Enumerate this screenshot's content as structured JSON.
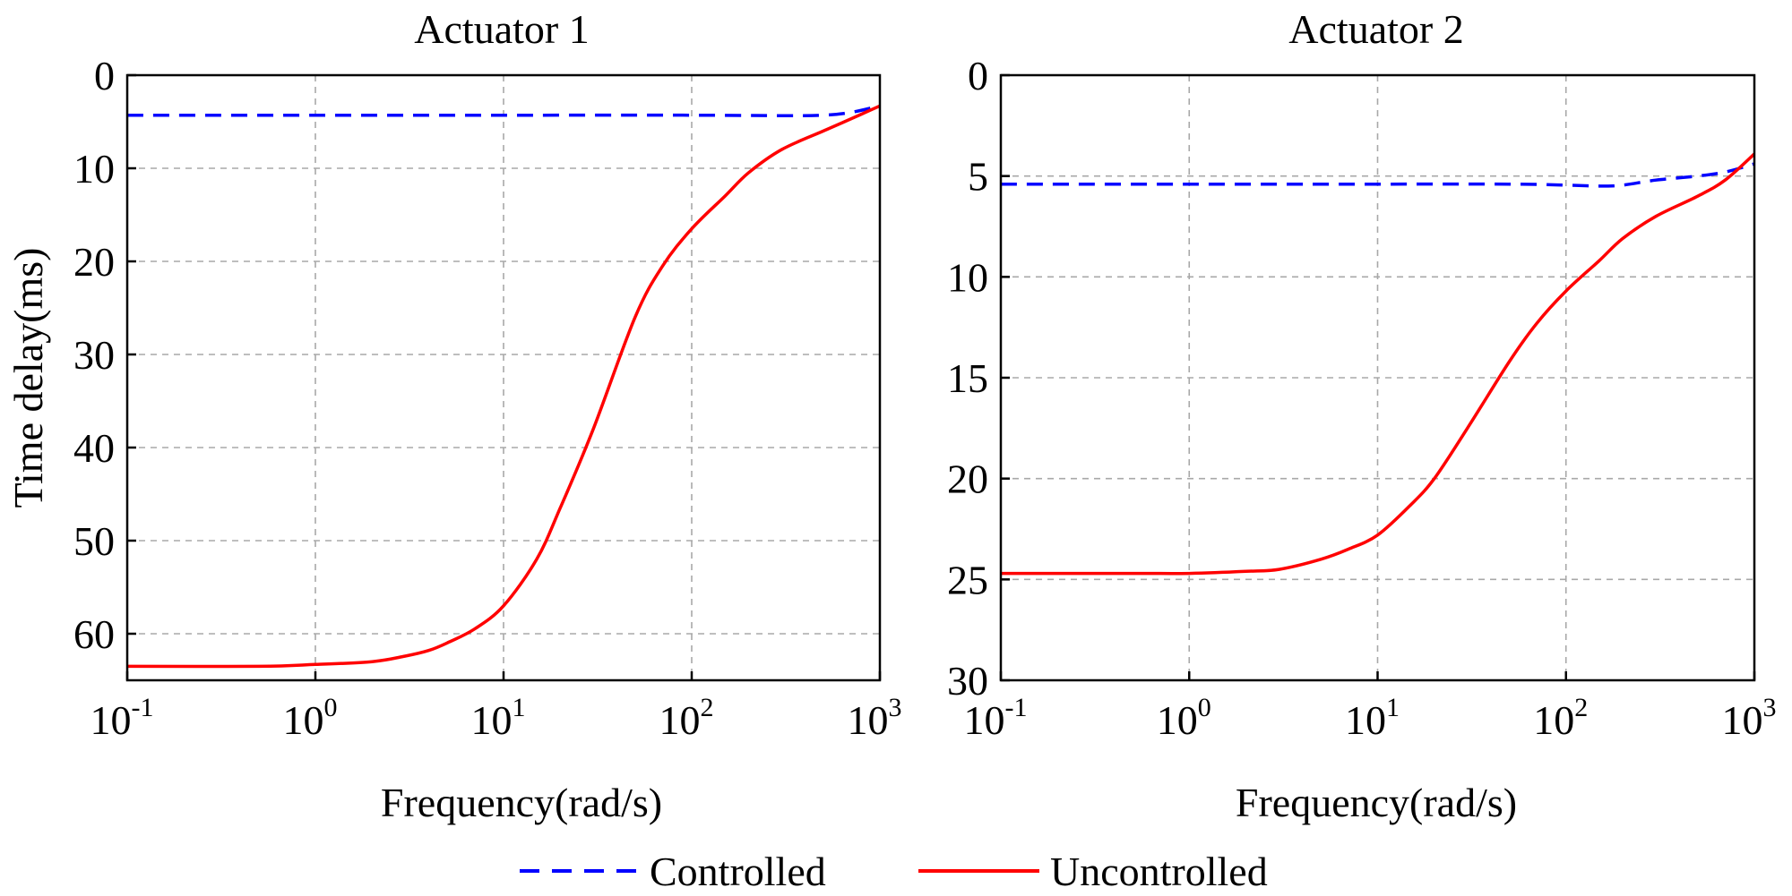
{
  "legend": [
    {
      "label": "Controlled",
      "color": "#0000ff",
      "style": "dashed"
    },
    {
      "label": "Uncontrolled",
      "color": "#ff0000",
      "style": "solid"
    }
  ],
  "chart_data": [
    {
      "type": "line",
      "title": "Actuator 1",
      "xlabel": "Frequency(rad/s)",
      "ylabel": "Time delay(ms)",
      "xscale": "log",
      "xlim": [
        0.1,
        1000
      ],
      "ylim": [
        0,
        65
      ],
      "y_inverted": true,
      "grid": true,
      "x_ticks": [
        {
          "base": "10",
          "exp": "-1",
          "value": 0.1
        },
        {
          "base": "10",
          "exp": "0",
          "value": 1
        },
        {
          "base": "10",
          "exp": "1",
          "value": 10
        },
        {
          "base": "10",
          "exp": "2",
          "value": 100
        },
        {
          "base": "10",
          "exp": "3",
          "value": 1000
        }
      ],
      "y_ticks": [
        "0",
        "10",
        "20",
        "30",
        "40",
        "50",
        "60"
      ],
      "series": [
        {
          "name": "Controlled",
          "color": "#0000ff",
          "style": "dashed",
          "x": [
            0.1,
            1,
            10,
            100,
            300,
            500,
            700,
            1000
          ],
          "y": [
            4.3,
            4.3,
            4.3,
            4.3,
            4.35,
            4.3,
            4.0,
            3.3
          ]
        },
        {
          "name": "Uncontrolled",
          "color": "#ff0000",
          "style": "solid",
          "x": [
            0.1,
            0.5,
            1,
            2,
            3,
            4,
            5,
            7,
            10,
            15,
            20,
            30,
            50,
            70,
            100,
            150,
            200,
            300,
            500,
            700,
            1000
          ],
          "y": [
            63.5,
            63.5,
            63.3,
            63.0,
            62.4,
            61.8,
            61.0,
            59.5,
            57.0,
            52.0,
            46.5,
            38.0,
            26.0,
            20.5,
            16.5,
            13.0,
            10.5,
            8.0,
            6.0,
            4.7,
            3.3
          ]
        }
      ]
    },
    {
      "type": "line",
      "title": "Actuator 2",
      "xlabel": "Frequency(rad/s)",
      "ylabel": "",
      "xscale": "log",
      "xlim": [
        0.1,
        1000
      ],
      "ylim": [
        0,
        30
      ],
      "y_inverted": true,
      "grid": true,
      "x_ticks": [
        {
          "base": "10",
          "exp": "-1",
          "value": 0.1
        },
        {
          "base": "10",
          "exp": "0",
          "value": 1
        },
        {
          "base": "10",
          "exp": "1",
          "value": 10
        },
        {
          "base": "10",
          "exp": "2",
          "value": 100
        },
        {
          "base": "10",
          "exp": "3",
          "value": 1000
        }
      ],
      "y_ticks": [
        "0",
        "5",
        "10",
        "15",
        "20",
        "25",
        "30"
      ],
      "series": [
        {
          "name": "Controlled",
          "color": "#0000ff",
          "style": "dashed",
          "x": [
            0.1,
            1,
            10,
            50,
            100,
            150,
            200,
            300,
            500,
            700,
            1000
          ],
          "y": [
            5.4,
            5.4,
            5.4,
            5.4,
            5.45,
            5.5,
            5.45,
            5.2,
            5.0,
            4.8,
            4.4
          ]
        },
        {
          "name": "Uncontrolled",
          "color": "#ff0000",
          "style": "solid",
          "x": [
            0.1,
            0.5,
            1,
            2,
            3,
            5,
            7,
            10,
            15,
            20,
            30,
            50,
            70,
            100,
            150,
            200,
            300,
            500,
            700,
            1000
          ],
          "y": [
            24.7,
            24.7,
            24.7,
            24.6,
            24.5,
            24.0,
            23.5,
            22.8,
            21.3,
            20.0,
            17.5,
            14.2,
            12.3,
            10.7,
            9.2,
            8.1,
            7.0,
            6.0,
            5.2,
            3.9
          ]
        }
      ]
    }
  ]
}
